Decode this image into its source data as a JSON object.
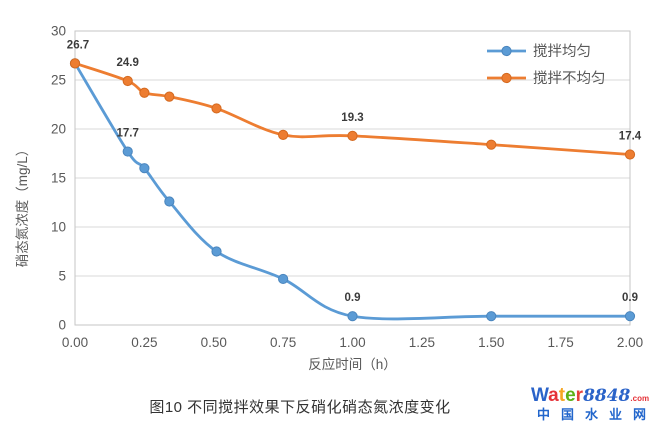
{
  "chart_data": {
    "type": "line",
    "title": "",
    "xlabel": "反应时间（h）",
    "ylabel": "硝态氮浓度（mg/L）",
    "xlim": [
      0,
      2.0
    ],
    "ylim": [
      0,
      30
    ],
    "x_tick_labels": [
      "0.00",
      "0.25",
      "0.50",
      "0.75",
      "1.00",
      "1.25",
      "1.50",
      "1.75",
      "2.00"
    ],
    "x_tick_values": [
      0,
      0.25,
      0.5,
      0.75,
      1.0,
      1.25,
      1.5,
      1.75,
      2.0
    ],
    "y_tick_labels": [
      "0",
      "5",
      "10",
      "15",
      "20",
      "25",
      "30"
    ],
    "y_tick_values": [
      0,
      5,
      10,
      15,
      20,
      25,
      30
    ],
    "grid": "horizontal",
    "smooth": true,
    "legend_position": "top-right-inside",
    "x": [
      0,
      0.19,
      0.25,
      0.34,
      0.51,
      0.75,
      1.0,
      1.5,
      2.0
    ],
    "series": [
      {
        "name": "搅拌均匀",
        "color": "#5B9BD5",
        "marker_edge": "#4A85BD",
        "values": [
          26.7,
          17.7,
          16.0,
          12.6,
          7.5,
          4.7,
          0.9,
          0.9,
          0.9
        ],
        "point_labels": [
          {
            "i": 1,
            "t": "17.7"
          },
          {
            "i": 6,
            "t": "0.9"
          },
          {
            "i": 8,
            "t": "0.9"
          }
        ]
      },
      {
        "name": "搅拌不均匀",
        "color": "#ED7D31",
        "marker_edge": "#D4691F",
        "values": [
          26.7,
          24.9,
          23.7,
          23.3,
          22.1,
          19.4,
          19.3,
          18.4,
          17.4
        ],
        "point_labels": [
          {
            "i": 0,
            "t": "26.7"
          },
          {
            "i": 1,
            "t": "24.9"
          },
          {
            "i": 6,
            "t": "19.3"
          },
          {
            "i": 8,
            "t": "17.4"
          }
        ]
      }
    ],
    "style_colors": {
      "gridline": "#D9D9D9",
      "plot_border": "#C6C6C6",
      "tick_label": "#595959",
      "axis_title": "#595959",
      "data_label": "#3B3B3B",
      "legend_label": "#595959"
    }
  },
  "caption": "图10 不同搅拌效果下反硝化硝态氮浓度变化",
  "watermark": {
    "word_letters": [
      {
        "ch": "W",
        "color": "#2A63C9"
      },
      {
        "ch": "a",
        "color": "#E53238"
      },
      {
        "ch": "t",
        "color": "#F5A623"
      },
      {
        "ch": "e",
        "color": "#5CB117"
      },
      {
        "ch": "r",
        "color": "#E5403A"
      }
    ],
    "number": "8848",
    "number_color": "#2A63C9",
    "tld": ".com",
    "tld_color": "#E53238",
    "subtitle": "中国水业网",
    "subtitle_color": "#2266CC"
  }
}
